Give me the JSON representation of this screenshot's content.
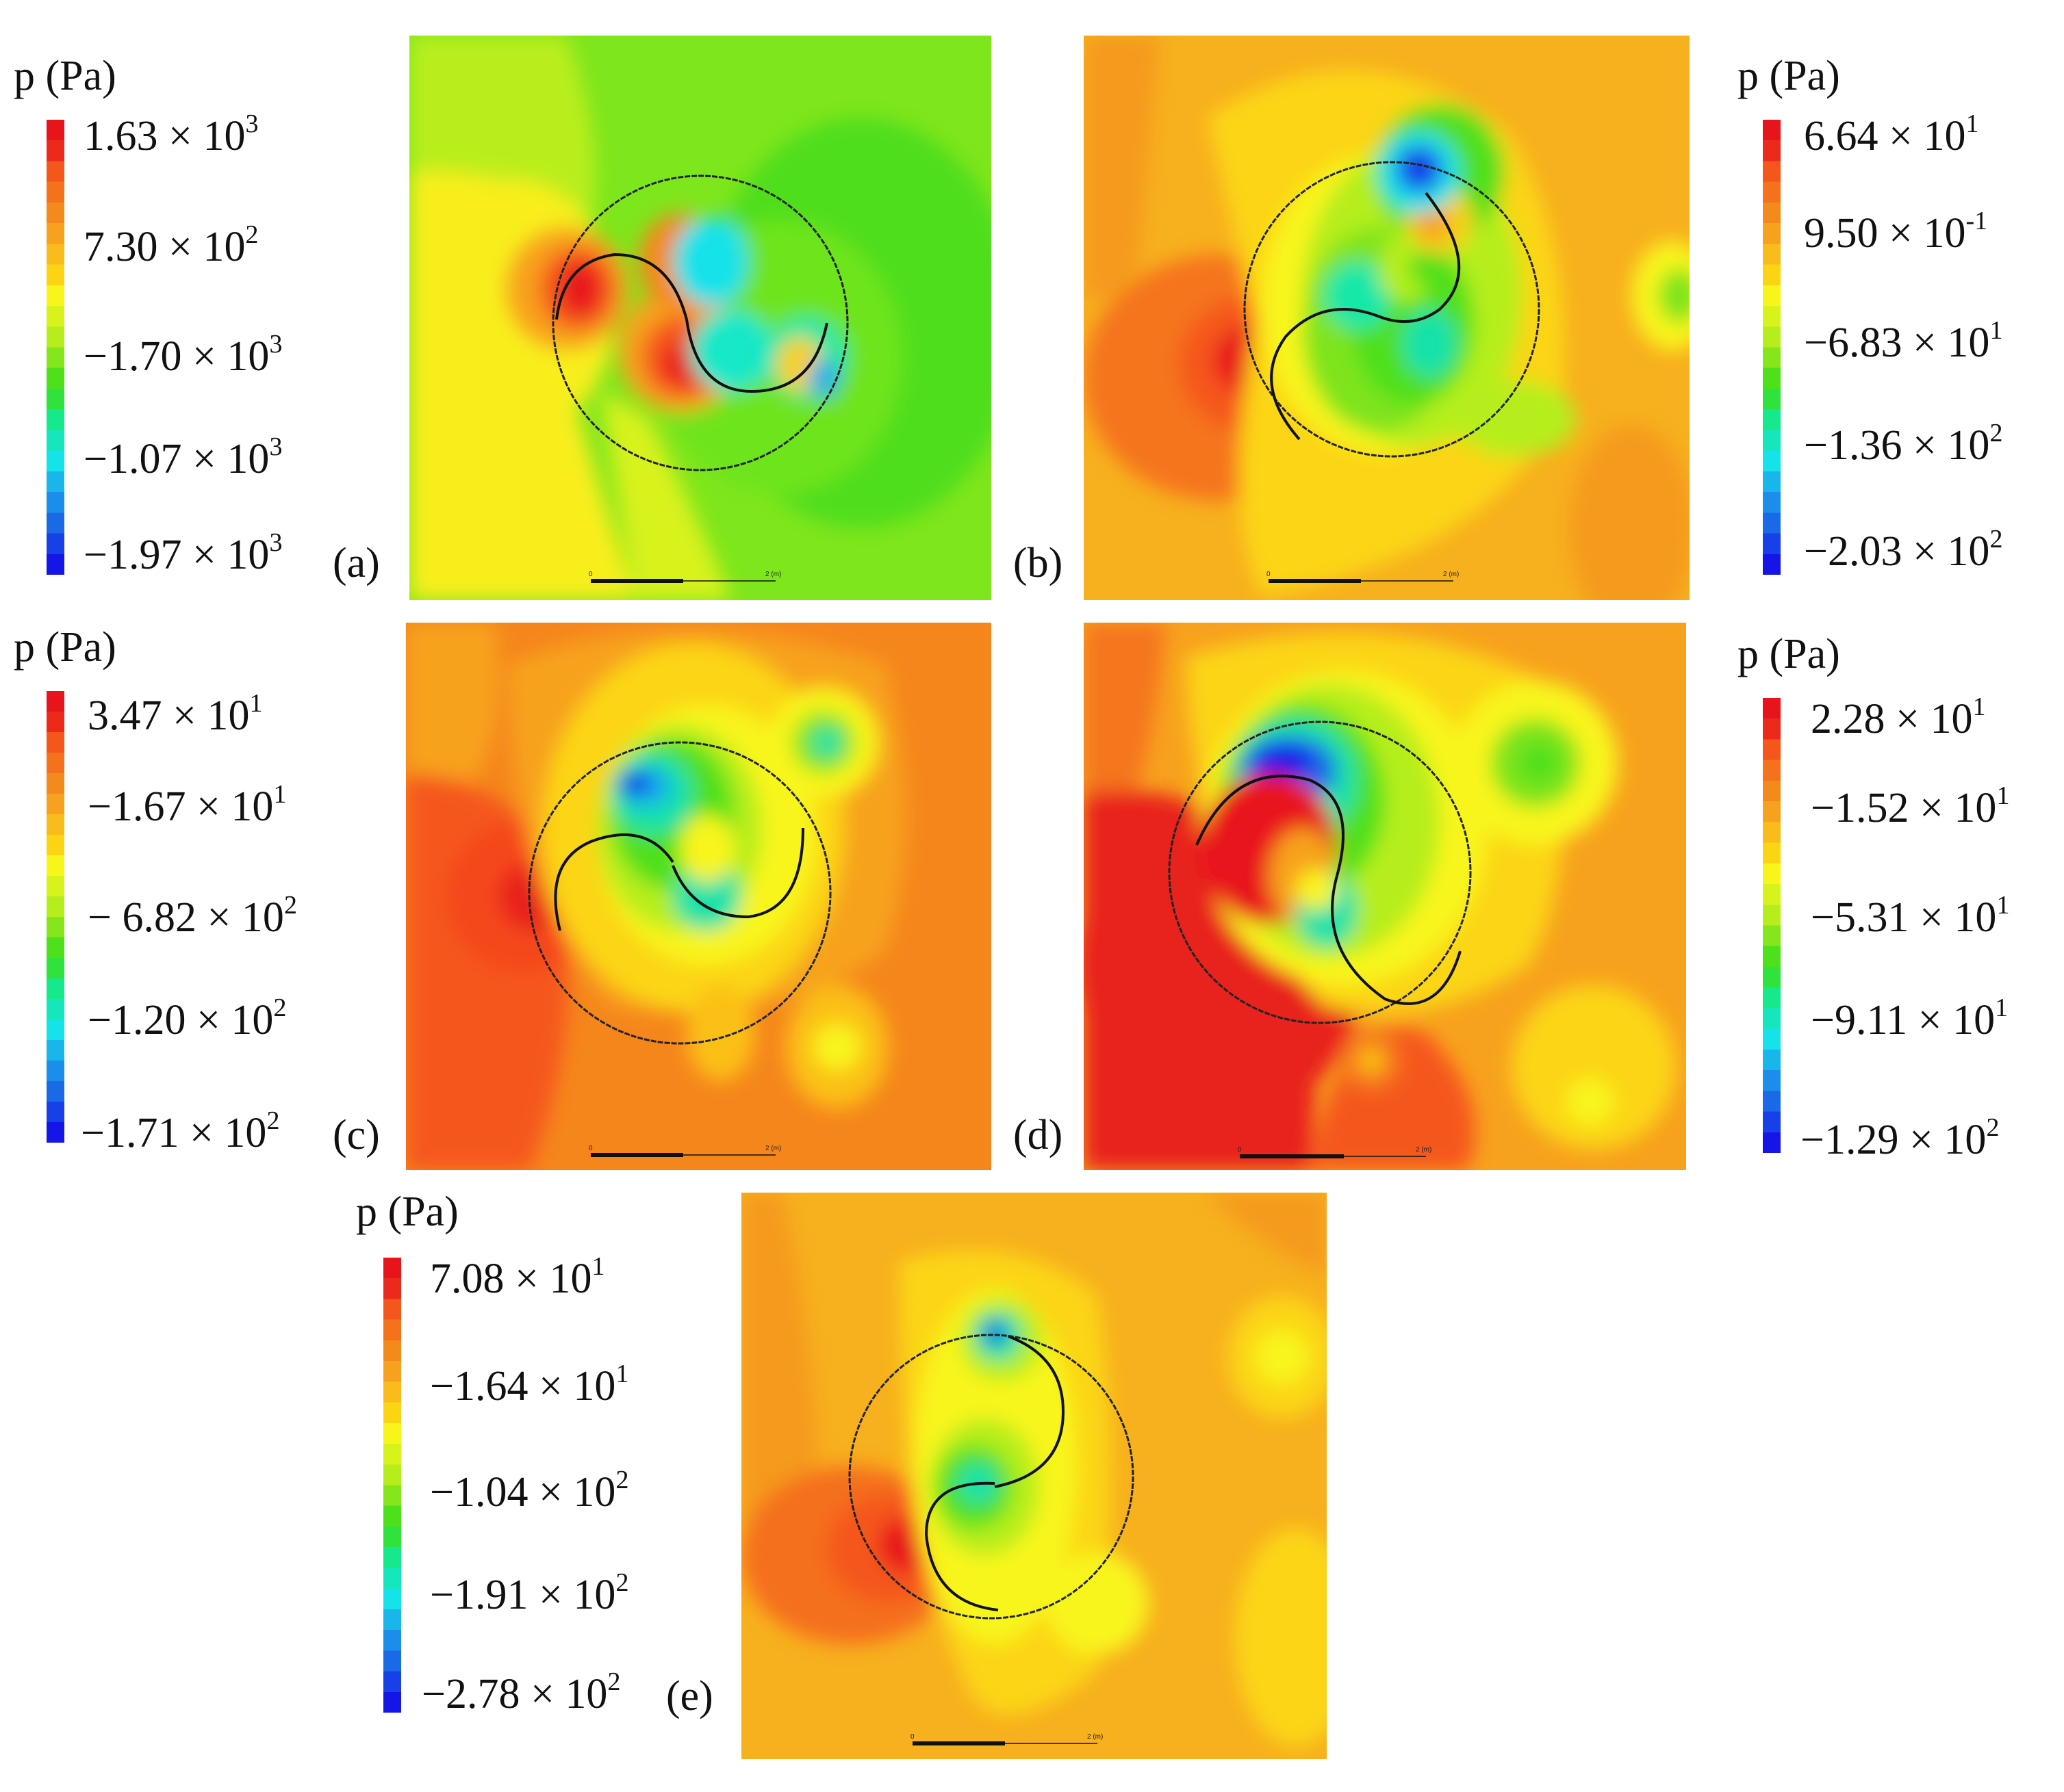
{
  "unit_label": "p (Pa)",
  "panels": [
    {
      "id": "a",
      "label": "(a)",
      "ticks": [
        [
          "1.63 × 10",
          "3"
        ],
        [
          "7.30 × 10",
          "2"
        ],
        [
          "−1.70 × 10",
          "3"
        ],
        [
          "−1.07 × 10",
          "3"
        ],
        [
          "−1.97 × 10",
          "3"
        ]
      ]
    },
    {
      "id": "b",
      "label": "(b)",
      "ticks": [
        [
          "6.64 × 10",
          "1"
        ],
        [
          "9.50 × 10",
          "-1"
        ],
        [
          "−6.83 × 10",
          "1"
        ],
        [
          "−1.36 × 10",
          "2"
        ],
        [
          "−2.03 × 10",
          "2"
        ]
      ]
    },
    {
      "id": "c",
      "label": "(c)",
      "ticks": [
        [
          "3.47 × 10",
          "1"
        ],
        [
          "−1.67 × 10",
          "1"
        ],
        [
          "− 6.82 × 10",
          "2"
        ],
        [
          "−1.20 × 10",
          "2"
        ],
        [
          "−1.71 × 10",
          "2"
        ]
      ]
    },
    {
      "id": "d",
      "label": "(d)",
      "ticks": [
        [
          "2.28 × 10",
          "1"
        ],
        [
          "−1.52 × 10",
          "1"
        ],
        [
          "−5.31 × 10",
          "1"
        ],
        [
          "−9.11 × 10",
          "1"
        ],
        [
          "−1.29 × 10",
          "2"
        ]
      ]
    },
    {
      "id": "e",
      "label": "(e)",
      "ticks": [
        [
          "7.08 × 10",
          "1"
        ],
        [
          "−1.64 × 10",
          "1"
        ],
        [
          "−1.04 × 10",
          "2"
        ],
        [
          "−1.91 × 10",
          "2"
        ],
        [
          "−2.78 × 10",
          "2"
        ]
      ]
    }
  ],
  "scale_bar": {
    "start": "0",
    "end": "2 (m)"
  },
  "colors": {
    "red": "#e8141c",
    "orange_red": "#f5561c",
    "orange": "#f7a21e",
    "yellow_orange": "#fbd514",
    "yellow": "#f8f51a",
    "yellow_green": "#b5ee1c",
    "green": "#4fe01c",
    "teal": "#16e88c",
    "cyan": "#16e2e9",
    "blue": "#1a6ae8",
    "dark_blue": "#1515e8"
  }
}
